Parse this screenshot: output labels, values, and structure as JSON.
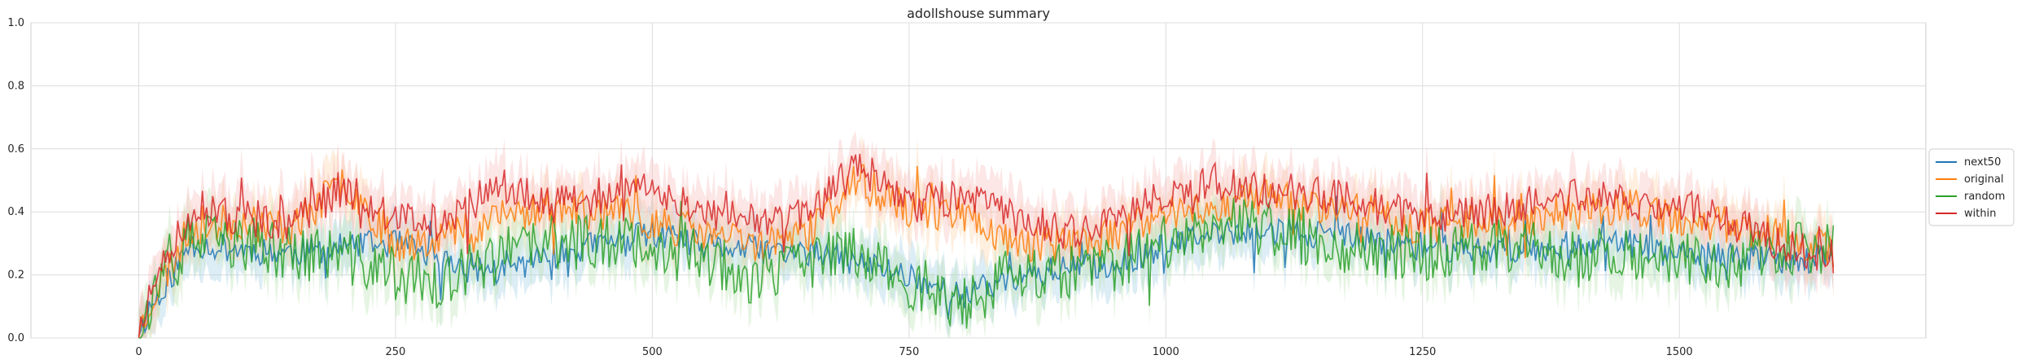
{
  "chart_data": {
    "type": "line",
    "title": "adollshouse summary",
    "xlabel": "",
    "ylabel": "",
    "xlim": [
      -105,
      1740
    ],
    "ylim": [
      0.0,
      1.0
    ],
    "x_ticks": [
      0,
      250,
      500,
      750,
      1000,
      1250,
      1500
    ],
    "y_ticks": [
      0.0,
      0.2,
      0.4,
      0.6,
      0.8,
      1.0
    ],
    "x_tick_labels": [
      "0",
      "250",
      "500",
      "750",
      "1000",
      "1250",
      "1500"
    ],
    "y_tick_labels": [
      "0.0",
      "0.2",
      "0.4",
      "0.6",
      "0.8",
      "1.0"
    ],
    "grid": true,
    "legend_position": "right",
    "x_start": 0,
    "x_end": 1650,
    "series": [
      {
        "name": "next50",
        "color": "#1f77b4",
        "band_color": "#9ecae1",
        "values_step": 50,
        "values": [
          0.03,
          0.3,
          0.28,
          0.27,
          0.29,
          0.3,
          0.24,
          0.21,
          0.26,
          0.3,
          0.33,
          0.29,
          0.28,
          0.27,
          0.24,
          0.2,
          0.13,
          0.19,
          0.22,
          0.23,
          0.29,
          0.33,
          0.34,
          0.33,
          0.31,
          0.29,
          0.28,
          0.28,
          0.3,
          0.3,
          0.26,
          0.26,
          0.25,
          0.25
        ]
      },
      {
        "name": "original",
        "color": "#ff7f0e",
        "band_color": "#fdd0a2",
        "values_step": 50,
        "values": [
          0.04,
          0.35,
          0.37,
          0.35,
          0.5,
          0.3,
          0.33,
          0.38,
          0.42,
          0.4,
          0.37,
          0.33,
          0.3,
          0.33,
          0.5,
          0.4,
          0.4,
          0.3,
          0.3,
          0.32,
          0.4,
          0.42,
          0.45,
          0.42,
          0.4,
          0.35,
          0.38,
          0.38,
          0.4,
          0.42,
          0.37,
          0.36,
          0.33,
          0.27
        ]
      },
      {
        "name": "random",
        "color": "#2ca02c",
        "band_color": "#b8e3b0",
        "values_step": 50,
        "values": [
          0.05,
          0.31,
          0.3,
          0.27,
          0.26,
          0.2,
          0.17,
          0.26,
          0.3,
          0.31,
          0.3,
          0.27,
          0.18,
          0.24,
          0.28,
          0.17,
          0.1,
          0.2,
          0.21,
          0.23,
          0.3,
          0.38,
          0.34,
          0.31,
          0.28,
          0.27,
          0.28,
          0.3,
          0.26,
          0.28,
          0.25,
          0.24,
          0.28,
          0.27
        ]
      },
      {
        "name": "within",
        "color": "#d62728",
        "band_color": "#f5b8b8",
        "values_step": 50,
        "values": [
          0.05,
          0.4,
          0.38,
          0.37,
          0.48,
          0.38,
          0.36,
          0.5,
          0.42,
          0.45,
          0.47,
          0.4,
          0.38,
          0.38,
          0.55,
          0.42,
          0.45,
          0.38,
          0.34,
          0.37,
          0.45,
          0.5,
          0.47,
          0.46,
          0.42,
          0.38,
          0.4,
          0.42,
          0.45,
          0.43,
          0.42,
          0.37,
          0.3,
          0.25
        ]
      }
    ]
  }
}
